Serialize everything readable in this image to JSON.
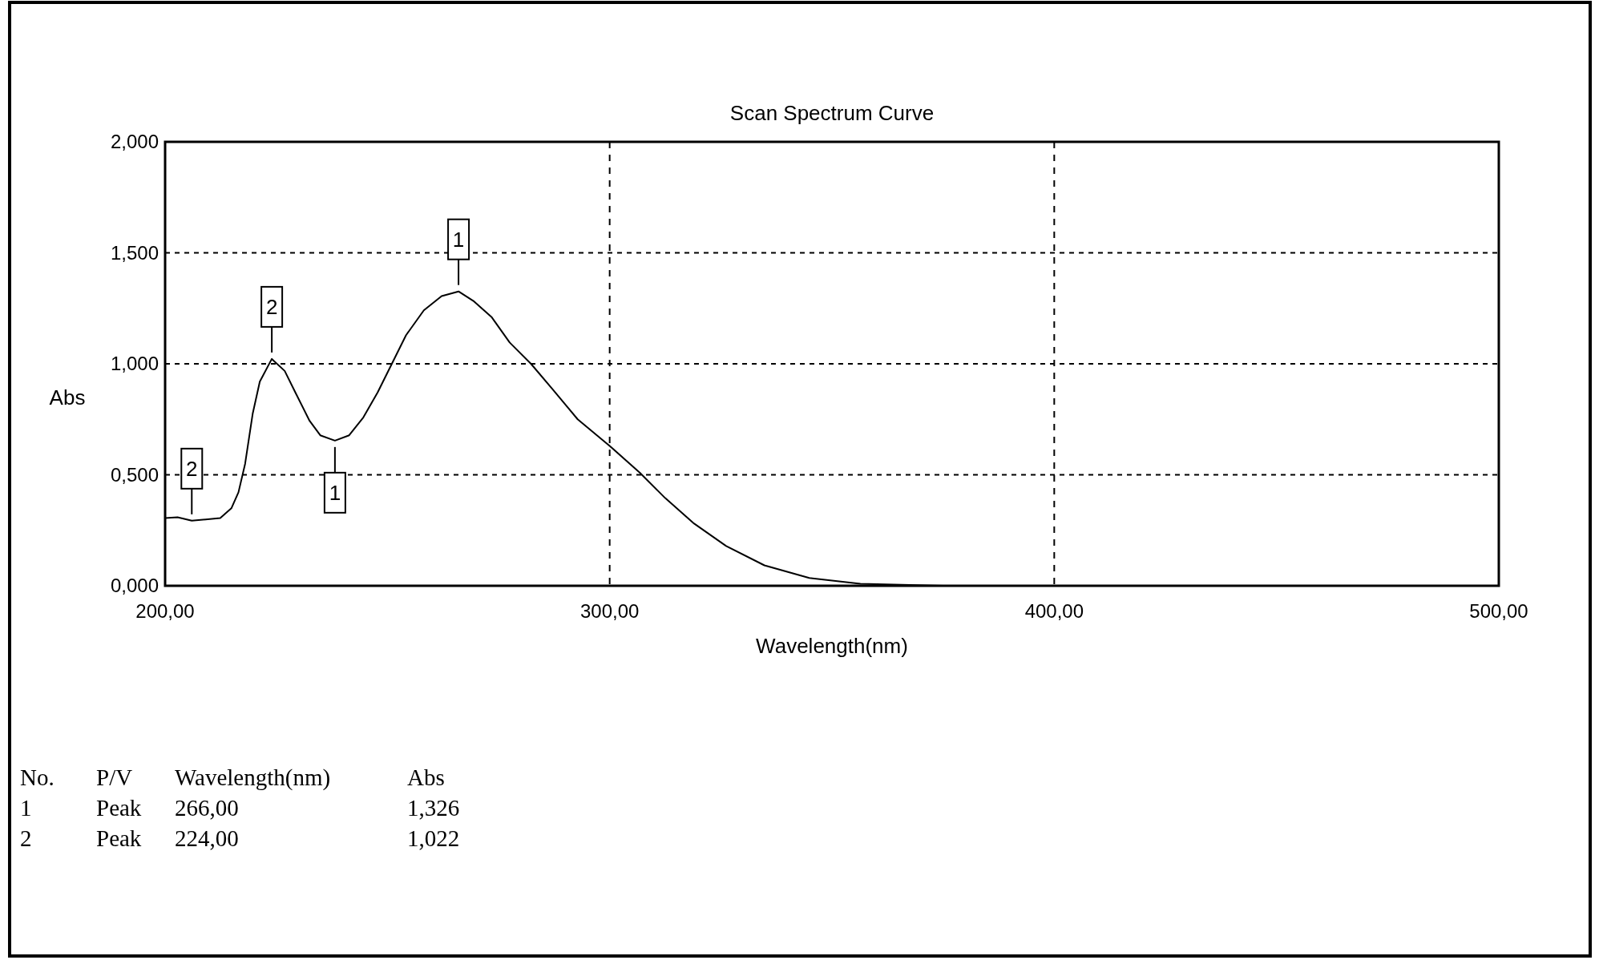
{
  "chart_data": {
    "type": "line",
    "title": "Scan Spectrum Curve",
    "xlabel": "Wavelength(nm)",
    "ylabel": "Abs",
    "x": [
      200,
      202.8,
      206,
      212.4,
      214.9,
      216.5,
      218,
      219.7,
      221.3,
      224,
      226.9,
      229.3,
      232.5,
      234.9,
      238.2,
      241.4,
      244.6,
      247.8,
      251,
      254.2,
      258.2,
      262.2,
      266,
      269.5,
      273.5,
      277.5,
      282.3,
      287.1,
      292.8,
      300,
      306.8,
      312.5,
      319,
      326.2,
      334.8,
      344.9,
      356.4,
      375,
      400,
      450,
      500
    ],
    "series": [
      {
        "color": "#000000",
        "values": [
          0.305,
          0.309,
          0.293,
          0.305,
          0.349,
          0.421,
          0.55,
          0.775,
          0.92,
          1.022,
          0.968,
          0.871,
          0.743,
          0.678,
          0.654,
          0.678,
          0.759,
          0.871,
          1.0,
          1.129,
          1.241,
          1.305,
          1.326,
          1.281,
          1.209,
          1.096,
          1.0,
          0.887,
          0.75,
          0.63,
          0.509,
          0.395,
          0.28,
          0.179,
          0.092,
          0.035,
          0.009,
          0,
          0,
          0,
          0
        ]
      }
    ],
    "xlim": [
      200,
      500
    ],
    "xticks": [
      {
        "value": 200,
        "label": "200,00"
      },
      {
        "value": 300,
        "label": "300,00"
      },
      {
        "value": 400,
        "label": "400,00"
      },
      {
        "value": 500,
        "label": "500,00"
      }
    ],
    "ylim": [
      0,
      2
    ],
    "yticks": [
      {
        "value": 0,
        "label": "0,000"
      },
      {
        "value": 0.5,
        "label": "0,500"
      },
      {
        "value": 1,
        "label": "1,000"
      },
      {
        "value": 1.5,
        "label": "1,500"
      },
      {
        "value": 2,
        "label": "2,000"
      }
    ],
    "grid": true,
    "marker": "none",
    "line_style": "solid",
    "annotations": [
      {
        "text": "1",
        "x": 266,
        "y": 1.326
      },
      {
        "text": "2",
        "x": 224,
        "y": 1.022
      },
      {
        "text": "1",
        "x": 238.2,
        "y": 0.654
      },
      {
        "text": "2",
        "x": 206,
        "y": 0.293
      },
      "No.",
      "P/V",
      "Wavelength(nm)",
      "Abs",
      "1",
      "Peak",
      "266,00",
      "1,326",
      "2",
      "Peak",
      "224,00",
      "1,022"
    ]
  }
}
